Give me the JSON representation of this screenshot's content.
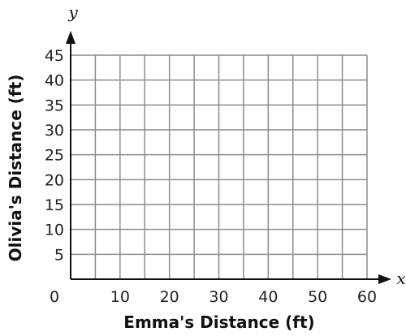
{
  "chart_data": {
    "type": "scatter",
    "title": "",
    "xlabel": "Emma's Distance (ft)",
    "ylabel": "Olivia's Distance (ft)",
    "x_axis_letter": "x",
    "y_axis_letter": "y",
    "origin_label": "0",
    "xlim": [
      0,
      60
    ],
    "ylim": [
      0,
      45
    ],
    "x_grid_step": 5,
    "y_grid_step": 5,
    "x_ticks": [
      10,
      20,
      30,
      40,
      50,
      60
    ],
    "y_ticks": [
      5,
      10,
      15,
      20,
      25,
      30,
      35,
      40,
      45
    ],
    "grid": true,
    "series": [],
    "colors": {
      "grid": "#8c8c8c",
      "axis": "#111111",
      "text": "#222222"
    }
  }
}
